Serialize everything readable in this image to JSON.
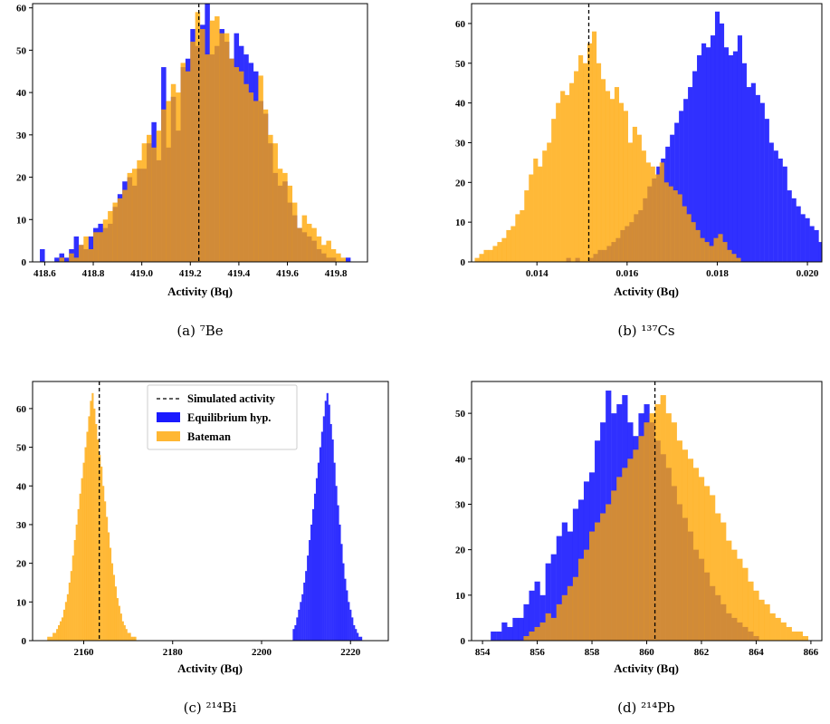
{
  "colors": {
    "equilibrium": "#1a1aff",
    "bateman": "#ffa500",
    "overlap": "#cc8a2a",
    "reference_line": "#000000"
  },
  "legend": {
    "simulated": "Simulated activity",
    "equilibrium": "Equilibrium hyp.",
    "bateman": "Bateman"
  },
  "chart_data": [
    {
      "id": "a",
      "type": "histogram",
      "caption": "(a) ⁷Be",
      "xlabel": "Activity (Bq)",
      "ylabel": "",
      "xlim": [
        418.55,
        419.93
      ],
      "ylim": [
        0,
        61
      ],
      "xticks": [
        418.6,
        418.8,
        419.0,
        419.2,
        419.4,
        419.6,
        419.8
      ],
      "xtick_labels": [
        "418.6",
        "418.8",
        "419.0",
        "419.2",
        "419.4",
        "419.6",
        "419.8"
      ],
      "yticks": [
        0,
        10,
        20,
        30,
        40,
        50,
        60
      ],
      "simulated_activity": 419.235,
      "series": [
        {
          "key": "equilibrium",
          "bin_start": 418.58,
          "bin_width": 0.02,
          "values": [
            3,
            0,
            0,
            1,
            2,
            1,
            3,
            6,
            4,
            3,
            6,
            8,
            9,
            8,
            9,
            13,
            16,
            19,
            20,
            18,
            22,
            22,
            28,
            33,
            24,
            46,
            27,
            39,
            31,
            46,
            48,
            55,
            51,
            56,
            62,
            49,
            51,
            55,
            52,
            48,
            54,
            51,
            49,
            47,
            45,
            38,
            35,
            28,
            21,
            18,
            19,
            14,
            11,
            8,
            7,
            6,
            5,
            3,
            2,
            1,
            1,
            0,
            0,
            1
          ]
        },
        {
          "key": "bateman",
          "bin_start": 418.66,
          "bin_width": 0.02,
          "values": [
            1,
            0,
            2,
            1,
            4,
            6,
            3,
            7,
            7,
            10,
            12,
            14,
            15,
            17,
            21,
            22,
            24,
            28,
            30,
            27,
            31,
            36,
            38,
            42,
            40,
            47,
            45,
            52,
            59,
            55,
            49,
            57,
            58,
            54,
            54,
            48,
            46,
            45,
            42,
            40,
            38,
            44,
            36,
            30,
            28,
            22,
            21,
            18,
            14,
            8,
            11,
            9,
            8,
            6,
            4,
            5,
            3,
            2,
            1
          ]
        }
      ]
    },
    {
      "id": "b",
      "type": "histogram",
      "caption": "(b) ¹³⁷Cs",
      "xlabel": "Activity (Bq)",
      "ylabel": "",
      "xlim": [
        0.01255,
        0.02032
      ],
      "ylim": [
        0,
        65
      ],
      "xticks": [
        0.014,
        0.016,
        0.018,
        0.02
      ],
      "xtick_labels": [
        "0.014",
        "0.016",
        "0.018",
        "0.020"
      ],
      "yticks": [
        0,
        10,
        20,
        30,
        40,
        50,
        60
      ],
      "simulated_activity": 0.01515,
      "series": [
        {
          "key": "equilibrium",
          "bin_start": 0.01465,
          "bin_width": 0.0001,
          "values": [
            1,
            0,
            1,
            0,
            0,
            1,
            2,
            3,
            3,
            4,
            5,
            6,
            8,
            9,
            10,
            12,
            13,
            16,
            19,
            21,
            24,
            26,
            29,
            32,
            35,
            38,
            41,
            44,
            48,
            52,
            55,
            54,
            57,
            63,
            60,
            54,
            52,
            53,
            57,
            50,
            44,
            45,
            42,
            40,
            36,
            30,
            28,
            26,
            24,
            18,
            16,
            14,
            12,
            11,
            9,
            8,
            5,
            4,
            3,
            2,
            1,
            3
          ]
        },
        {
          "key": "bateman",
          "bin_start": 0.01262,
          "bin_width": 0.0001,
          "values": [
            1,
            2,
            3,
            3,
            4,
            5,
            6,
            8,
            9,
            12,
            13,
            18,
            22,
            26,
            24,
            28,
            30,
            36,
            40,
            43,
            42,
            45,
            48,
            52,
            50,
            55,
            58,
            50,
            46,
            43,
            41,
            44,
            40,
            38,
            30,
            34,
            32,
            28,
            25,
            24,
            22,
            25,
            20,
            19,
            18,
            17,
            14,
            12,
            10,
            8,
            6,
            5,
            4,
            6,
            7,
            5,
            3,
            2,
            1
          ]
        }
      ]
    },
    {
      "id": "c",
      "type": "histogram",
      "caption": "(c) ²¹⁴Bi",
      "xlabel": "Activity (Bq)",
      "ylabel": "",
      "xlim": [
        2148.5,
        2228.5
      ],
      "ylim": [
        0,
        67
      ],
      "xticks": [
        2160,
        2180,
        2200,
        2220
      ],
      "xtick_labels": [
        "2160",
        "2180",
        "2200",
        "2220"
      ],
      "yticks": [
        0,
        10,
        20,
        30,
        40,
        50,
        60
      ],
      "simulated_activity": 2163.5,
      "series": [
        {
          "key": "equilibrium",
          "bin_start": 2207.0,
          "bin_width": 0.4,
          "values": [
            3,
            4,
            6,
            8,
            10,
            12,
            15,
            18,
            22,
            26,
            30,
            34,
            38,
            42,
            46,
            50,
            54,
            58,
            62,
            64,
            61,
            56,
            52,
            46,
            40,
            35,
            30,
            25,
            20,
            16,
            13,
            10,
            8,
            6,
            4,
            3,
            2,
            1,
            1
          ]
        },
        {
          "key": "bateman",
          "bin_start": 2151.8,
          "bin_width": 0.4,
          "values": [
            1,
            1,
            1,
            2,
            2,
            3,
            4,
            5,
            6,
            8,
            10,
            12,
            15,
            18,
            22,
            26,
            30,
            34,
            38,
            42,
            46,
            50,
            54,
            58,
            62,
            64,
            60,
            56,
            52,
            48,
            45,
            40,
            36,
            32,
            28,
            24,
            20,
            17,
            14,
            11,
            9,
            7,
            5,
            4,
            3,
            2,
            2,
            1,
            1,
            1
          ]
        }
      ]
    },
    {
      "id": "d",
      "type": "histogram",
      "caption": "(d) ²¹⁴Pb",
      "xlabel": "Activity (Bq)",
      "ylabel": "",
      "xlim": [
        853.6,
        866.4
      ],
      "ylim": [
        0,
        57
      ],
      "xticks": [
        854,
        856,
        858,
        860,
        862,
        864,
        866
      ],
      "xtick_labels": [
        "854",
        "856",
        "858",
        "860",
        "862",
        "864",
        "866"
      ],
      "yticks": [
        0,
        10,
        20,
        30,
        40,
        50
      ],
      "simulated_activity": 860.3,
      "series": [
        {
          "key": "equilibrium",
          "bin_start": 854.3,
          "bin_width": 0.2,
          "values": [
            2,
            2,
            4,
            3,
            5,
            5,
            8,
            11,
            13,
            10,
            17,
            19,
            23,
            26,
            24,
            29,
            31,
            35,
            37,
            44,
            48,
            55,
            50,
            52,
            54,
            48,
            45,
            50,
            52,
            48,
            44,
            41,
            38,
            34,
            30,
            27,
            24,
            20,
            18,
            15,
            12,
            10,
            8,
            6,
            5,
            4,
            3,
            2,
            1
          ]
        },
        {
          "key": "bateman",
          "bin_start": 855.5,
          "bin_width": 0.2,
          "values": [
            1,
            2,
            3,
            4,
            6,
            5,
            8,
            10,
            12,
            14,
            18,
            20,
            24,
            26,
            28,
            30,
            33,
            36,
            38,
            40,
            42,
            45,
            48,
            50,
            52,
            54,
            50,
            48,
            44,
            42,
            40,
            38,
            36,
            34,
            32,
            28,
            26,
            22,
            20,
            18,
            16,
            13,
            11,
            9,
            8,
            6,
            5,
            4,
            3,
            2,
            2,
            1
          ]
        }
      ]
    }
  ]
}
